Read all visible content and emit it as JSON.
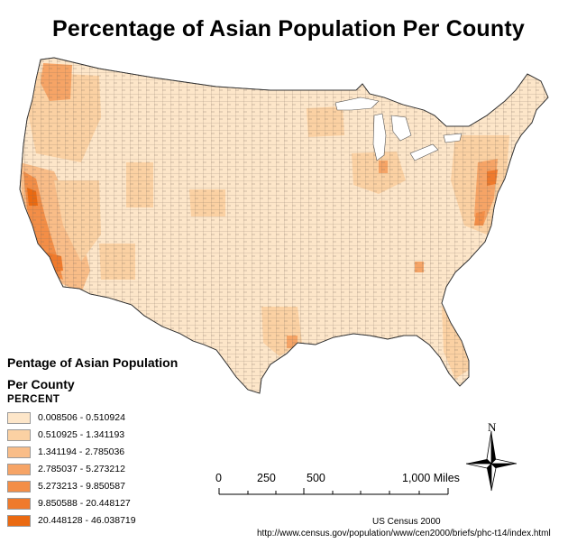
{
  "title": "Percentage of Asian Population Per County",
  "legend": {
    "title_line1": "Pentage of Asian Population",
    "title_line2": "Per County",
    "heading": "PERCENT",
    "classes": [
      {
        "label": "0.008506 - 0.510924",
        "color": "#fde6c9"
      },
      {
        "label": "0.510925 - 1.341193",
        "color": "#fbd1a3"
      },
      {
        "label": "1.341194 - 2.785036",
        "color": "#f9bd88"
      },
      {
        "label": "2.785037 - 5.273212",
        "color": "#f6a466"
      },
      {
        "label": "5.273213 - 9.850587",
        "color": "#f38e47"
      },
      {
        "label": "9.850588 - 20.448127",
        "color": "#ef7a2c"
      },
      {
        "label": "20.448128 - 46.038719",
        "color": "#ea6a12"
      }
    ]
  },
  "scale_bar": {
    "labels": [
      "0",
      "250",
      "500",
      "1,000 Miles"
    ]
  },
  "north_arrow": {
    "letter": "N",
    "icon": "compass-rose-icon"
  },
  "source": {
    "line1": "US Census 2000",
    "line2": "http://www.census.gov/population/www/cen2000/briefs/phc-t14/index.html"
  },
  "map": {
    "type": "choropleth",
    "region": "Contiguous United States counties",
    "boundary_color": "#555555"
  }
}
